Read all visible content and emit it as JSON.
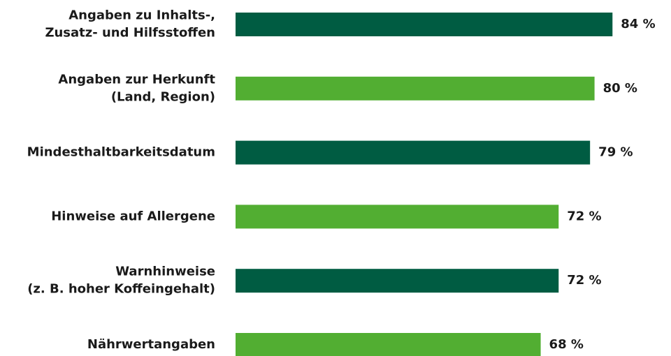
{
  "chart_data": {
    "type": "bar",
    "orientation": "horizontal",
    "categories": [
      [
        "Angaben zu Inhalts-,",
        "Zusatz- und Hilfsstoffen"
      ],
      [
        "Angaben zur Herkunft",
        "(Land, Region)"
      ],
      [
        "Mindesthaltbarkeitsdatum"
      ],
      [
        "Hinweise auf Allergene"
      ],
      [
        "Warnhinweise",
        "(z. B. hoher Koffeingehalt)"
      ],
      [
        "Nährwertangaben"
      ]
    ],
    "values": [
      84,
      80,
      79,
      72,
      72,
      68
    ],
    "value_labels": [
      "84 %",
      "80 %",
      "79 %",
      "72 %",
      "72 %",
      "68 %"
    ],
    "colors": [
      "#005c42",
      "#52ae32",
      "#005c42",
      "#52ae32",
      "#005c42",
      "#52ae32"
    ]
  }
}
